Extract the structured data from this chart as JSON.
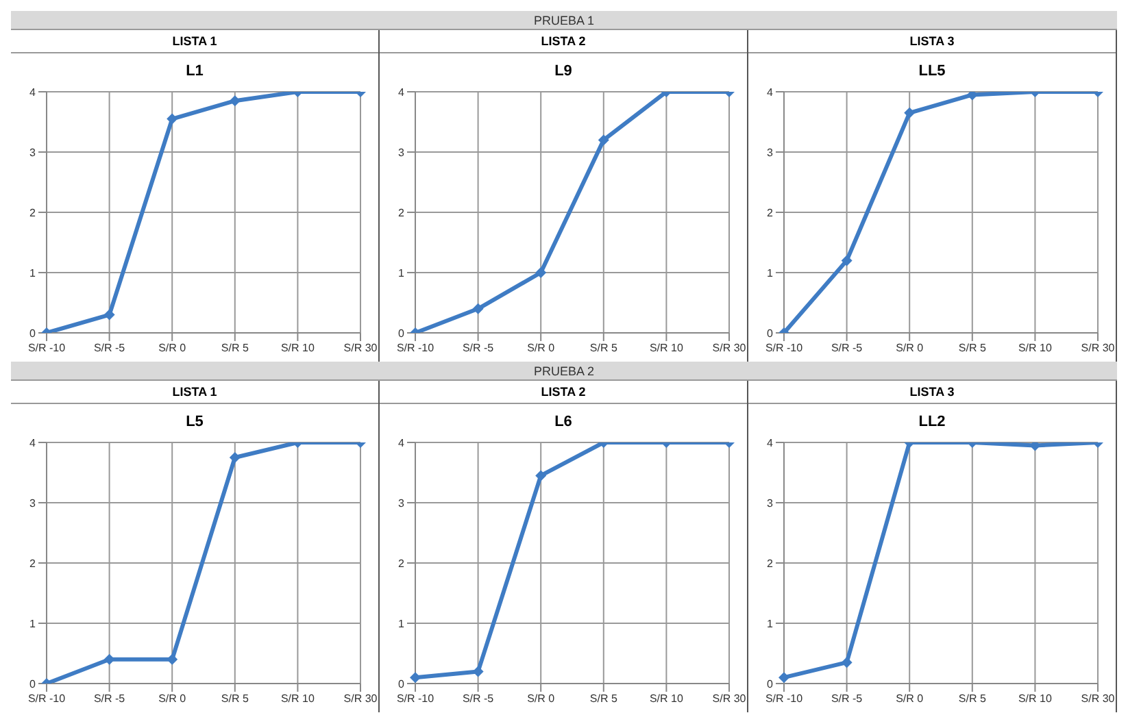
{
  "chart_data": [
    {
      "type": "line",
      "title": "L1",
      "annotations": [
        "PRUEBA 1",
        "LISTA 1"
      ],
      "categories": [
        "S/R -10",
        "S/R -5",
        "S/R 0",
        "S/R 5",
        "S/R 10",
        "S/R 30"
      ],
      "series": [
        {
          "color": "#3f7cc4",
          "values": [
            0,
            0.3,
            3.55,
            3.85,
            4,
            4
          ]
        }
      ],
      "ylim": [
        0,
        4
      ],
      "yticks": [
        0,
        1,
        2,
        3,
        4
      ],
      "grid": true,
      "legend": false,
      "marker": "diamond",
      "line_style": "solid"
    },
    {
      "type": "line",
      "title": "L9",
      "annotations": [
        "LISTA 2"
      ],
      "categories": [
        "S/R -10",
        "S/R -5",
        "S/R 0",
        "S/R 5",
        "S/R 10",
        "S/R 30"
      ],
      "series": [
        {
          "color": "#3f7cc4",
          "values": [
            0,
            0.4,
            1.0,
            3.2,
            4,
            4
          ]
        }
      ],
      "ylim": [
        0,
        4
      ],
      "yticks": [
        0,
        1,
        2,
        3,
        4
      ],
      "grid": true,
      "legend": false,
      "marker": "diamond",
      "line_style": "solid"
    },
    {
      "type": "line",
      "title": "LL5",
      "annotations": [
        "LISTA 3"
      ],
      "categories": [
        "S/R -10",
        "S/R -5",
        "S/R 0",
        "S/R 5",
        "S/R 10",
        "S/R 30"
      ],
      "series": [
        {
          "color": "#3f7cc4",
          "values": [
            0,
            1.2,
            3.65,
            3.95,
            4,
            4
          ]
        }
      ],
      "ylim": [
        0,
        4
      ],
      "yticks": [
        0,
        1,
        2,
        3,
        4
      ],
      "grid": true,
      "legend": false,
      "marker": "diamond",
      "line_style": "solid"
    },
    {
      "type": "line",
      "title": "L5",
      "annotations": [
        "PRUEBA 2",
        "LISTA 1"
      ],
      "categories": [
        "S/R -10",
        "S/R -5",
        "S/R 0",
        "S/R 5",
        "S/R 10",
        "S/R 30"
      ],
      "series": [
        {
          "color": "#3f7cc4",
          "values": [
            0,
            0.4,
            0.4,
            3.75,
            4,
            4
          ]
        }
      ],
      "ylim": [
        0,
        4
      ],
      "yticks": [
        0,
        1,
        2,
        3,
        4
      ],
      "grid": true,
      "legend": false,
      "marker": "diamond",
      "line_style": "solid"
    },
    {
      "type": "line",
      "title": "L6",
      "annotations": [
        "LISTA 2"
      ],
      "categories": [
        "S/R -10",
        "S/R -5",
        "S/R 0",
        "S/R 5",
        "S/R 10",
        "S/R 30"
      ],
      "series": [
        {
          "color": "#3f7cc4",
          "values": [
            0.1,
            0.2,
            3.45,
            4,
            4,
            4
          ]
        }
      ],
      "ylim": [
        0,
        4
      ],
      "yticks": [
        0,
        1,
        2,
        3,
        4
      ],
      "grid": true,
      "legend": false,
      "marker": "diamond",
      "line_style": "solid"
    },
    {
      "type": "line",
      "title": "LL2",
      "annotations": [
        "LISTA 3"
      ],
      "categories": [
        "S/R -10",
        "S/R -5",
        "S/R 0",
        "S/R 5",
        "S/R 10",
        "S/R 30"
      ],
      "series": [
        {
          "color": "#3f7cc4",
          "values": [
            0.1,
            0.35,
            4,
            4,
            3.95,
            4
          ]
        }
      ],
      "ylim": [
        0,
        4
      ],
      "yticks": [
        0,
        1,
        2,
        3,
        4
      ],
      "grid": true,
      "legend": false,
      "marker": "diamond",
      "line_style": "solid"
    }
  ]
}
